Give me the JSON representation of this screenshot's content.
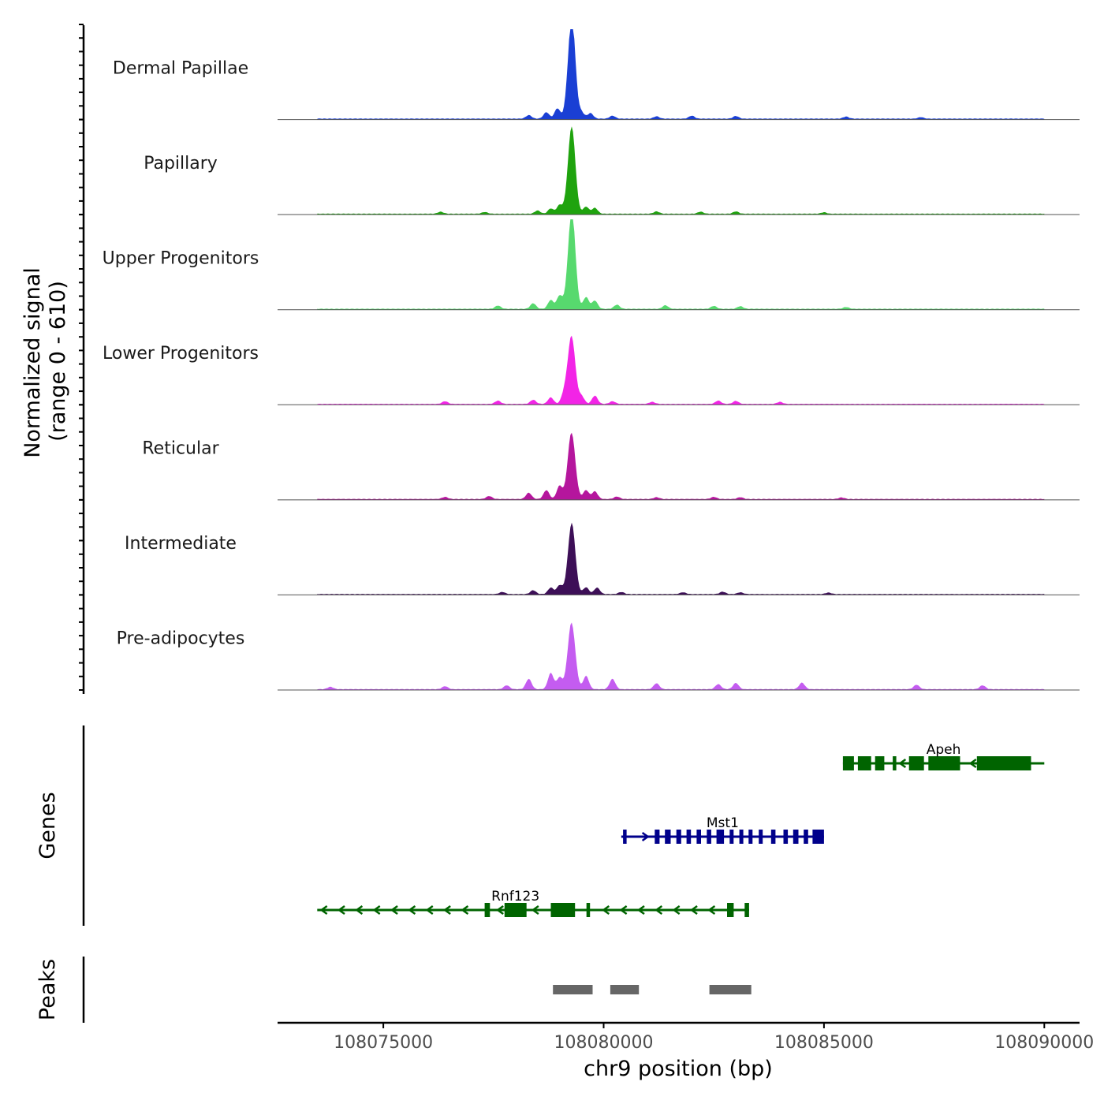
{
  "chart_data": {
    "type": "area",
    "title": "",
    "chromosome": "chr9",
    "xlabel": "chr9 position (bp)",
    "xlim": [
      108072600,
      108090800
    ],
    "x_ticks": [
      108075000,
      108080000,
      108085000,
      108090000
    ],
    "x_tick_labels": [
      "108075000",
      "108080000",
      "108085000",
      "108090000"
    ],
    "ylabel_line1": "Normalized signal",
    "ylabel_line2": "(range 0 - 610)",
    "ylim": [
      0,
      610
    ],
    "signal_range": [
      108073500,
      108090000
    ],
    "tracks": [
      {
        "name": "Dermal Papillae",
        "color": "#1a3fd4",
        "peak_value": 610,
        "background_peaks": [
          [
            108078300,
            24
          ],
          [
            108078700,
            44
          ],
          [
            108078950,
            70
          ],
          [
            108079300,
            90
          ],
          [
            108079500,
            40
          ],
          [
            108079700,
            38
          ],
          [
            108080200,
            20
          ],
          [
            108081200,
            16
          ],
          [
            108082000,
            20
          ],
          [
            108083000,
            18
          ],
          [
            108085500,
            14
          ],
          [
            108087200,
            10
          ]
        ]
      },
      {
        "name": "Papillary",
        "color": "#1fa30e",
        "peak_value": 540,
        "background_peaks": [
          [
            108076300,
            14
          ],
          [
            108077300,
            12
          ],
          [
            108078500,
            22
          ],
          [
            108078800,
            36
          ],
          [
            108079000,
            60
          ],
          [
            108079300,
            56
          ],
          [
            108079600,
            48
          ],
          [
            108079800,
            40
          ],
          [
            108081200,
            16
          ],
          [
            108082200,
            14
          ],
          [
            108083000,
            16
          ],
          [
            108085000,
            10
          ]
        ]
      },
      {
        "name": "Upper Progenitors",
        "color": "#57d96e",
        "peak_value": 580,
        "background_peaks": [
          [
            108077600,
            22
          ],
          [
            108078400,
            38
          ],
          [
            108078800,
            60
          ],
          [
            108079000,
            90
          ],
          [
            108079300,
            100
          ],
          [
            108079600,
            80
          ],
          [
            108079800,
            56
          ],
          [
            108080300,
            28
          ],
          [
            108081400,
            24
          ],
          [
            108082500,
            20
          ],
          [
            108083100,
            18
          ],
          [
            108085500,
            12
          ]
        ]
      },
      {
        "name": "Lower Progenitors",
        "color": "#f224e6",
        "peak_value": 460,
        "background_peaks": [
          [
            108076400,
            18
          ],
          [
            108077600,
            22
          ],
          [
            108078400,
            28
          ],
          [
            108078800,
            44
          ],
          [
            108079100,
            60
          ],
          [
            108079500,
            50
          ],
          [
            108079800,
            56
          ],
          [
            108080200,
            18
          ],
          [
            108081100,
            14
          ],
          [
            108082600,
            22
          ],
          [
            108083000,
            20
          ],
          [
            108084000,
            14
          ]
        ]
      },
      {
        "name": "Reticular",
        "color": "#b5169d",
        "peak_value": 450,
        "background_peaks": [
          [
            108076400,
            14
          ],
          [
            108077400,
            20
          ],
          [
            108078300,
            42
          ],
          [
            108078700,
            60
          ],
          [
            108079000,
            90
          ],
          [
            108079600,
            60
          ],
          [
            108079800,
            52
          ],
          [
            108080300,
            16
          ],
          [
            108081200,
            12
          ],
          [
            108082500,
            14
          ],
          [
            108083100,
            12
          ],
          [
            108085400,
            10
          ]
        ]
      },
      {
        "name": "Intermediate",
        "color": "#3d0f57",
        "peak_value": 430,
        "background_peaks": [
          [
            108077700,
            14
          ],
          [
            108078400,
            26
          ],
          [
            108078800,
            44
          ],
          [
            108079000,
            60
          ],
          [
            108079300,
            56
          ],
          [
            108079600,
            46
          ],
          [
            108079850,
            44
          ],
          [
            108080400,
            14
          ],
          [
            108081800,
            12
          ],
          [
            108082700,
            16
          ],
          [
            108083100,
            12
          ],
          [
            108085100,
            10
          ]
        ]
      },
      {
        "name": "Pre-adipocytes",
        "color": "#c45cf0",
        "peak_value": 450,
        "background_peaks": [
          [
            108073800,
            16
          ],
          [
            108076400,
            20
          ],
          [
            108077800,
            26
          ],
          [
            108078300,
            70
          ],
          [
            108078800,
            110
          ],
          [
            108079000,
            80
          ],
          [
            108079600,
            90
          ],
          [
            108080200,
            70
          ],
          [
            108081200,
            40
          ],
          [
            108082600,
            34
          ],
          [
            108083000,
            42
          ],
          [
            108084500,
            44
          ],
          [
            108087100,
            30
          ],
          [
            108088600,
            26
          ]
        ]
      }
    ],
    "peak_position": 108079270,
    "genes_panel_label": "Genes",
    "genes": [
      {
        "name": "Apeh",
        "strand": "-",
        "start": 108085430,
        "end": 108090000,
        "color": "#006400",
        "row": 0,
        "exons": [
          [
            108085430,
            108085680
          ],
          [
            108085770,
            108086070
          ],
          [
            108086160,
            108086370
          ],
          [
            108086560,
            108086640
          ],
          [
            108086930,
            108087270
          ],
          [
            108087370,
            108088090
          ],
          [
            108088470,
            108089700
          ]
        ]
      },
      {
        "name": "Mst1",
        "strand": "+",
        "start": 108080400,
        "end": 108085000,
        "color": "#00008b",
        "row": 1,
        "exons": [
          [
            108080440,
            108080520
          ],
          [
            108081160,
            108081270
          ],
          [
            108081390,
            108081520
          ],
          [
            108081650,
            108081760
          ],
          [
            108081880,
            108081980
          ],
          [
            108082110,
            108082210
          ],
          [
            108082340,
            108082440
          ],
          [
            108082560,
            108082730
          ],
          [
            108082860,
            108082950
          ],
          [
            108083080,
            108083170
          ],
          [
            108083290,
            108083380
          ],
          [
            108083520,
            108083610
          ],
          [
            108083800,
            108083900
          ],
          [
            108084080,
            108084180
          ],
          [
            108084300,
            108084420
          ],
          [
            108084540,
            108084640
          ],
          [
            108084740,
            108085000
          ]
        ]
      },
      {
        "name": "Rnf123",
        "strand": "-",
        "start": 108073500,
        "end": 108083300,
        "color": "#006400",
        "row": 2,
        "exons": [
          [
            108077300,
            108077420
          ],
          [
            108077750,
            108078250
          ],
          [
            108078800,
            108079350
          ],
          [
            108079610,
            108079690
          ],
          [
            108082800,
            108082950
          ],
          [
            108083200,
            108083300
          ]
        ]
      }
    ],
    "peaks_panel_label": "Peaks",
    "peaks": [
      [
        108078850,
        108079750
      ],
      [
        108080150,
        108080800
      ],
      [
        108082400,
        108083350
      ]
    ],
    "peak_color": "#666666"
  }
}
